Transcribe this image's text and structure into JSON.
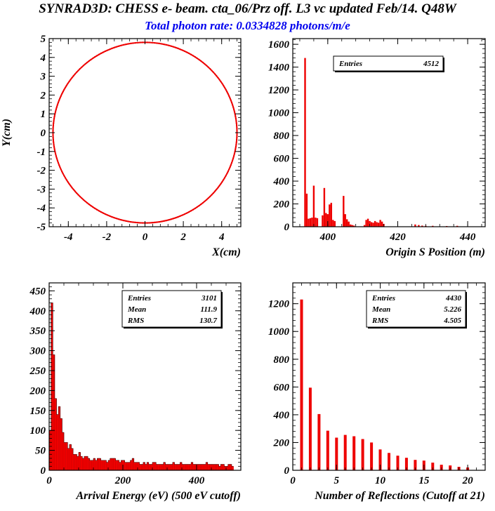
{
  "title": "SYNRAD3D: CHESS e- beam. cta_06/Prz off. L3 vc updated Feb/14. Q48W",
  "subtitle": "Total photon rate: 0.0334828 photons/m/e",
  "colors": {
    "data": "#ee0000",
    "title": "#000000",
    "subtitle": "#0000ee",
    "frame": "#000000"
  },
  "chart_data": [
    {
      "type": "scatter",
      "xlabel": "X(cm)",
      "ylabel": "Y(cm)",
      "xlim": [
        -5,
        5
      ],
      "ylim": [
        -5,
        5
      ],
      "xticks": [
        -4,
        -2,
        0,
        2,
        4
      ],
      "yticks": [
        -5,
        -4,
        -3,
        -2,
        -1,
        0,
        1,
        2,
        3,
        4,
        5
      ],
      "shape": "circle",
      "radius": 4.8
    },
    {
      "type": "bar",
      "xlabel": "Origin S Position (m)",
      "ylabel": "",
      "xlim": [
        390,
        445
      ],
      "ylim": [
        0,
        1650
      ],
      "xticks": [
        400,
        420,
        440
      ],
      "yticks": [
        0,
        200,
        400,
        600,
        800,
        1000,
        1200,
        1400,
        1600
      ],
      "stats": [
        {
          "label": "Entries",
          "value": "4512"
        }
      ],
      "binwidth": 0.5,
      "x": [
        393.5,
        394.0,
        394.5,
        395.0,
        395.5,
        396.0,
        396.5,
        397.0,
        398.5,
        399.0,
        399.5,
        400.0,
        400.5,
        401.0,
        401.5,
        402.0,
        404.5,
        405.0,
        405.5,
        406.0,
        406.5,
        407.0,
        407.5,
        410.5,
        411.0,
        411.5,
        412.0,
        412.5,
        413.0,
        413.5,
        414.0,
        414.5,
        415.0,
        415.5,
        416.0,
        425.0,
        426.0,
        427.0,
        428.0,
        430.0,
        434.0,
        437.0
      ],
      "values": [
        1480,
        290,
        70,
        75,
        80,
        360,
        80,
        75,
        100,
        340,
        120,
        110,
        195,
        210,
        60,
        50,
        270,
        110,
        65,
        45,
        20,
        15,
        10,
        15,
        60,
        70,
        50,
        40,
        35,
        50,
        40,
        35,
        60,
        45,
        25,
        20,
        15,
        10,
        8,
        8,
        6,
        8
      ]
    },
    {
      "type": "bar",
      "xlabel": "Arrival Energy (eV) (500 eV cutoff)",
      "ylabel": "",
      "xlim": [
        0,
        520
      ],
      "ylim": [
        0,
        470
      ],
      "xticks": [
        0,
        200,
        400
      ],
      "yticks": [
        0,
        50,
        100,
        150,
        200,
        250,
        300,
        350,
        400,
        450
      ],
      "stats": [
        {
          "label": "Entries",
          "value": "3101"
        },
        {
          "label": "Mean",
          "value": "111.9"
        },
        {
          "label": "RMS",
          "value": "130.7"
        }
      ],
      "binwidth": 5,
      "values": [
        100,
        420,
        290,
        180,
        140,
        160,
        130,
        95,
        70,
        70,
        55,
        65,
        55,
        40,
        40,
        35,
        45,
        35,
        30,
        35,
        35,
        30,
        25,
        25,
        30,
        25,
        30,
        30,
        25,
        25,
        25,
        20,
        25,
        30,
        30,
        30,
        25,
        25,
        20,
        25,
        25,
        20,
        20,
        20,
        25,
        30,
        20,
        20,
        20,
        15,
        15,
        20,
        15,
        20,
        15,
        15,
        20,
        20,
        15,
        15,
        15,
        15,
        20,
        15,
        15,
        15,
        15,
        20,
        15,
        15,
        15,
        20,
        15,
        15,
        15,
        15,
        15,
        20,
        15,
        15,
        15,
        15,
        15,
        15,
        15,
        20,
        15,
        15,
        15,
        15,
        15,
        15,
        10,
        15,
        15,
        10,
        10,
        15,
        15,
        10
      ]
    },
    {
      "type": "bar",
      "xlabel": "Number of Reflections (Cutoff at 21)",
      "ylabel": "",
      "xlim": [
        0,
        22
      ],
      "ylim": [
        0,
        1350
      ],
      "xticks": [
        0,
        5,
        10,
        15,
        20
      ],
      "yticks": [
        0,
        200,
        400,
        600,
        800,
        1000,
        1200
      ],
      "stats": [
        {
          "label": "Entries",
          "value": "4430"
        },
        {
          "label": "Mean",
          "value": "5.226"
        },
        {
          "label": "RMS",
          "value": "4.505"
        }
      ],
      "x": [
        1,
        2,
        3,
        4,
        5,
        6,
        7,
        8,
        9,
        10,
        11,
        12,
        13,
        14,
        15,
        16,
        17,
        18,
        19,
        20
      ],
      "values": [
        1230,
        595,
        405,
        285,
        235,
        255,
        245,
        225,
        200,
        150,
        125,
        105,
        90,
        75,
        70,
        55,
        40,
        35,
        25,
        20
      ]
    }
  ]
}
